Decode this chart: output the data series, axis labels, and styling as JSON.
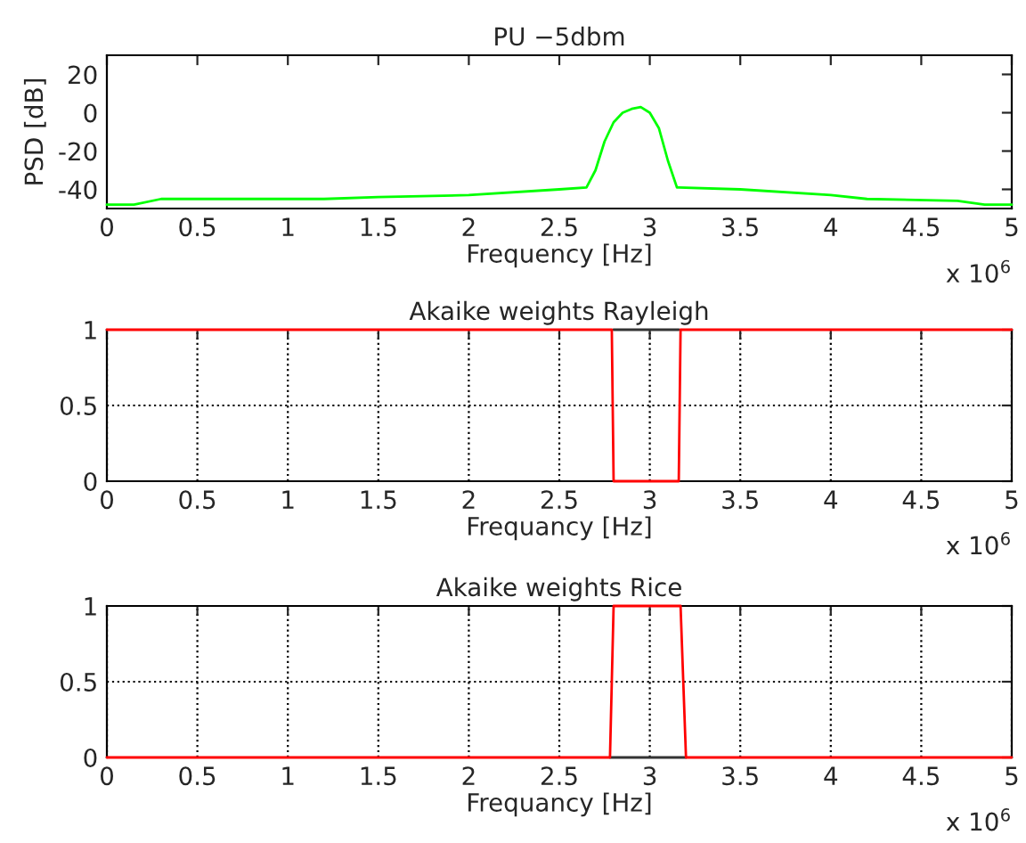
{
  "chart_data": [
    {
      "type": "line",
      "title": "PU −5dbm",
      "xlabel": "Frequency [Hz]",
      "ylabel": "PSD [dB]",
      "annotations": [
        "x 10$^{6}$"
      ],
      "series": [
        {
          "color": "#00ff00",
          "x": [
            0,
            0.15,
            0.3,
            0.7,
            1.2,
            1.5,
            2,
            2.5,
            2.65,
            2.7,
            2.75,
            2.8,
            2.85,
            2.9,
            2.95,
            3.0,
            3.05,
            3.1,
            3.15,
            3.5,
            4,
            4.2,
            4.7,
            4.85,
            5
          ],
          "values": [
            -48,
            -48,
            -45,
            -45,
            -45,
            -44,
            -43,
            -40,
            -39,
            -30,
            -15,
            -5,
            0,
            2,
            3,
            0,
            -8,
            -25,
            -39,
            -40,
            -43,
            -45,
            -46,
            -48,
            -48
          ]
        }
      ],
      "xlim": [
        0,
        5
      ],
      "xticks": [
        0,
        0.5,
        1,
        1.5,
        2,
        2.5,
        3,
        3.5,
        4,
        4.5,
        5
      ],
      "ylim": [
        -50,
        30
      ],
      "yticks": [
        -40,
        -20,
        0,
        20
      ],
      "grid": false,
      "legend": false
    },
    {
      "type": "line",
      "title": "Akaike weights Rayleigh",
      "xlabel": "Frequancy [Hz]",
      "annotations": [
        "x 10$^{6}$"
      ],
      "series": [
        {
          "color": "#333333",
          "x": [
            2.8,
            3.16
          ],
          "values": [
            1,
            1
          ]
        },
        {
          "color": "#ff0000",
          "x": [
            0,
            2.79,
            2.8,
            3.16,
            3.17,
            5
          ],
          "values": [
            1,
            1,
            0,
            0,
            1,
            1
          ]
        }
      ],
      "xlim": [
        0,
        5
      ],
      "xticks": [
        0,
        0.5,
        1,
        1.5,
        2,
        2.5,
        3,
        3.5,
        4,
        4.5,
        5
      ],
      "ylim": [
        0,
        1
      ],
      "yticks": [
        0,
        0.5,
        1
      ],
      "grid": true,
      "line_style": "solid",
      "legend": false
    },
    {
      "type": "line",
      "title": "Akaike weights Rice",
      "xlabel": "Frequancy [Hz]",
      "annotations": [
        "x 10$^{6}$"
      ],
      "series": [
        {
          "color": "#333333",
          "x": [
            2.78,
            3.2
          ],
          "values": [
            0,
            0
          ]
        },
        {
          "color": "#ff0000",
          "x": [
            0,
            2.78,
            2.8,
            3.17,
            3.2,
            5
          ],
          "values": [
            0,
            0,
            1,
            1,
            0,
            0
          ]
        }
      ],
      "xlim": [
        0,
        5
      ],
      "xticks": [
        0,
        0.5,
        1,
        1.5,
        2,
        2.5,
        3,
        3.5,
        4,
        4.5,
        5
      ],
      "ylim": [
        0,
        1
      ],
      "yticks": [
        0,
        0.5,
        1
      ],
      "grid": true,
      "line_style": "solid",
      "legend": false
    }
  ]
}
